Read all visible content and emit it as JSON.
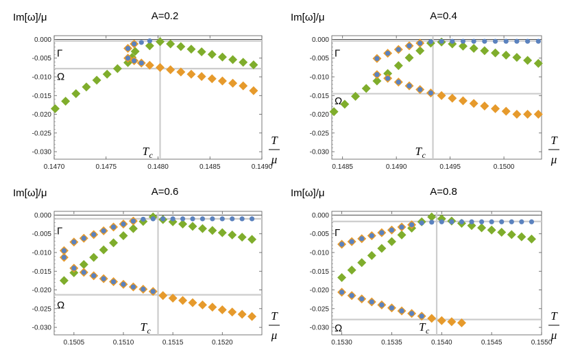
{
  "colors": {
    "green": "#7fad2c",
    "orange": "#e69a2c",
    "blue": "#5b82be",
    "ref": "#cccccc"
  },
  "chart_data": [
    {
      "type": "scatter",
      "title": "A=0.2",
      "ylabel": "Im[ω]/μ",
      "xlabel": "T",
      "xlabel_denominator": "μ",
      "tc_label": "T",
      "tc_sub": "c",
      "xlim": [
        0.147,
        0.149
      ],
      "ylim": [
        -0.032,
        0.001
      ],
      "xticks": [
        0.147,
        0.1475,
        0.148,
        0.1485,
        0.149
      ],
      "yticks": [
        0.0,
        -0.005,
        -0.01,
        -0.015,
        -0.02,
        -0.025,
        -0.03
      ],
      "tc": 0.14802,
      "gamma_line": -0.0004,
      "omega_line": -0.0078,
      "gamma_label": "Γ",
      "omega_label": "Ω",
      "gamma_label_y": -0.0035,
      "omega_label_y": -0.0097,
      "green": [
        [
          0.14701,
          -0.0185
        ],
        [
          0.14711,
          -0.0165
        ],
        [
          0.14721,
          -0.0145
        ],
        [
          0.14731,
          -0.0127
        ],
        [
          0.14741,
          -0.0109
        ],
        [
          0.14751,
          -0.0093
        ],
        [
          0.14761,
          -0.0078
        ],
        [
          0.14771,
          -0.0062
        ],
        [
          0.14775,
          -0.0048
        ],
        [
          0.14778,
          -0.0032
        ],
        [
          0.14792,
          -0.0017
        ],
        [
          0.14802,
          -0.0006
        ],
        [
          0.14812,
          -0.0012
        ],
        [
          0.14822,
          -0.0019
        ],
        [
          0.14832,
          -0.0026
        ],
        [
          0.14842,
          -0.0033
        ],
        [
          0.14852,
          -0.004
        ],
        [
          0.14862,
          -0.0047
        ],
        [
          0.14872,
          -0.0054
        ],
        [
          0.14882,
          -0.0061
        ],
        [
          0.14892,
          -0.0068
        ]
      ],
      "orange": [
        [
          0.14771,
          -0.0024
        ],
        [
          0.14777,
          -0.0012
        ],
        [
          0.14771,
          -0.005
        ],
        [
          0.14777,
          -0.0057
        ],
        [
          0.14784,
          -0.0063
        ],
        [
          0.14792,
          -0.0069
        ],
        [
          0.14802,
          -0.0075
        ],
        [
          0.14812,
          -0.0081
        ],
        [
          0.14822,
          -0.0087
        ],
        [
          0.14832,
          -0.0093
        ],
        [
          0.14842,
          -0.0099
        ],
        [
          0.14852,
          -0.0105
        ],
        [
          0.14862,
          -0.0111
        ],
        [
          0.14872,
          -0.0117
        ],
        [
          0.14882,
          -0.0124
        ],
        [
          0.14892,
          -0.0137
        ]
      ],
      "blue": [
        [
          0.14771,
          -0.0024
        ],
        [
          0.14777,
          -0.0012
        ],
        [
          0.14784,
          -0.0008
        ],
        [
          0.14792,
          -0.0004
        ],
        [
          0.14771,
          -0.005
        ],
        [
          0.14777,
          -0.0057
        ],
        [
          0.14784,
          -0.0063
        ]
      ]
    },
    {
      "type": "scatter",
      "title": "A=0.4",
      "ylabel": "Im[ω]/μ",
      "xlabel": "T",
      "xlabel_denominator": "μ",
      "tc_label": "T",
      "tc_sub": "c",
      "xlim": [
        0.1484,
        0.15035
      ],
      "ylim": [
        -0.032,
        0.001
      ],
      "xticks": [
        0.1485,
        0.149,
        0.1495,
        0.15
      ],
      "yticks": [
        0.0,
        -0.005,
        -0.01,
        -0.015,
        -0.02,
        -0.025,
        -0.03
      ],
      "tc": 0.14934,
      "gamma_line": -0.0004,
      "omega_line": -0.0145,
      "gamma_label": "Γ",
      "omega_label": "Ω",
      "gamma_label_y": -0.0035,
      "omega_label_y": -0.0162,
      "green": [
        [
          0.14842,
          -0.0193
        ],
        [
          0.14852,
          -0.0173
        ],
        [
          0.14862,
          -0.0152
        ],
        [
          0.14872,
          -0.0131
        ],
        [
          0.14882,
          -0.0111
        ],
        [
          0.14892,
          -0.0091
        ],
        [
          0.14902,
          -0.007
        ],
        [
          0.14912,
          -0.0049
        ],
        [
          0.14922,
          -0.003
        ],
        [
          0.14932,
          -0.001
        ],
        [
          0.14942,
          -0.0007
        ],
        [
          0.14952,
          -0.0012
        ],
        [
          0.14962,
          -0.0018
        ],
        [
          0.14972,
          -0.0024
        ],
        [
          0.14982,
          -0.003
        ],
        [
          0.14992,
          -0.0036
        ],
        [
          0.15002,
          -0.0042
        ],
        [
          0.15012,
          -0.0048
        ],
        [
          0.15022,
          -0.0056
        ],
        [
          0.15032,
          -0.0064
        ]
      ],
      "orange": [
        [
          0.14882,
          -0.0051
        ],
        [
          0.14892,
          -0.0037
        ],
        [
          0.14902,
          -0.0027
        ],
        [
          0.14912,
          -0.0017
        ],
        [
          0.14922,
          -0.001
        ],
        [
          0.14882,
          -0.0094
        ],
        [
          0.14892,
          -0.0104
        ],
        [
          0.14902,
          -0.0114
        ],
        [
          0.14912,
          -0.0124
        ],
        [
          0.14922,
          -0.0134
        ],
        [
          0.14932,
          -0.0143
        ],
        [
          0.14942,
          -0.015
        ],
        [
          0.14952,
          -0.0157
        ],
        [
          0.14962,
          -0.0164
        ],
        [
          0.14972,
          -0.0171
        ],
        [
          0.14982,
          -0.0178
        ],
        [
          0.14992,
          -0.0185
        ],
        [
          0.15002,
          -0.0192
        ],
        [
          0.15012,
          -0.02
        ],
        [
          0.15022,
          -0.02
        ],
        [
          0.15032,
          -0.02
        ]
      ],
      "blue": [
        [
          0.14882,
          -0.0051
        ],
        [
          0.14892,
          -0.0037
        ],
        [
          0.14902,
          -0.0027
        ],
        [
          0.14912,
          -0.0017
        ],
        [
          0.14922,
          -0.001
        ],
        [
          0.14932,
          -0.0006
        ],
        [
          0.14942,
          -0.0005
        ],
        [
          0.14952,
          -0.0005
        ],
        [
          0.14962,
          -0.0005
        ],
        [
          0.14972,
          -0.0005
        ],
        [
          0.14982,
          -0.0005
        ],
        [
          0.14992,
          -0.0005
        ],
        [
          0.15002,
          -0.0005
        ],
        [
          0.15012,
          -0.0005
        ],
        [
          0.15022,
          -0.0005
        ],
        [
          0.15032,
          -0.0005
        ],
        [
          0.14882,
          -0.0094
        ],
        [
          0.14892,
          -0.0104
        ],
        [
          0.14902,
          -0.0114
        ],
        [
          0.14912,
          -0.0124
        ],
        [
          0.14922,
          -0.0134
        ],
        [
          0.14932,
          -0.0143
        ]
      ]
    },
    {
      "type": "scatter",
      "title": "A=0.6",
      "ylabel": "Im[ω]/μ",
      "xlabel": "T",
      "xlabel_denominator": "μ",
      "tc_label": "T",
      "tc_sub": "c",
      "xlim": [
        0.1503,
        0.1524
      ],
      "ylim": [
        -0.032,
        0.001
      ],
      "xticks": [
        0.1505,
        0.151,
        0.1515,
        0.152
      ],
      "yticks": [
        0.0,
        -0.005,
        -0.01,
        -0.015,
        -0.02,
        -0.025,
        -0.03
      ],
      "tc": 0.15135,
      "gamma_line": -0.001,
      "omega_line": -0.0213,
      "gamma_label": "Γ",
      "omega_label": "Ω",
      "gamma_label_y": -0.004,
      "omega_label_y": -0.0238,
      "green": [
        [
          0.1504,
          -0.0175
        ],
        [
          0.1505,
          -0.0154
        ],
        [
          0.1506,
          -0.0132
        ],
        [
          0.1507,
          -0.0113
        ],
        [
          0.1508,
          -0.0093
        ],
        [
          0.1509,
          -0.0074
        ],
        [
          0.151,
          -0.0055
        ],
        [
          0.1511,
          -0.0036
        ],
        [
          0.1512,
          -0.0017
        ],
        [
          0.1513,
          -0.0005
        ],
        [
          0.1514,
          -0.0012
        ],
        [
          0.1515,
          -0.0018
        ],
        [
          0.1516,
          -0.0024
        ],
        [
          0.1517,
          -0.003
        ],
        [
          0.1518,
          -0.0036
        ],
        [
          0.1519,
          -0.0041
        ],
        [
          0.152,
          -0.0047
        ],
        [
          0.1521,
          -0.0053
        ],
        [
          0.1522,
          -0.0059
        ],
        [
          0.1523,
          -0.0065
        ]
      ],
      "orange": [
        [
          0.1504,
          -0.0095
        ],
        [
          0.1504,
          -0.0113
        ],
        [
          0.1505,
          -0.0072
        ],
        [
          0.1506,
          -0.0062
        ],
        [
          0.1507,
          -0.0052
        ],
        [
          0.1508,
          -0.0042
        ],
        [
          0.1509,
          -0.0032
        ],
        [
          0.151,
          -0.0024
        ],
        [
          0.1511,
          -0.0016
        ],
        [
          0.1505,
          -0.0142
        ],
        [
          0.1506,
          -0.0153
        ],
        [
          0.1507,
          -0.0162
        ],
        [
          0.1508,
          -0.017
        ],
        [
          0.1509,
          -0.0178
        ],
        [
          0.151,
          -0.0185
        ],
        [
          0.1511,
          -0.0192
        ],
        [
          0.1512,
          -0.0198
        ],
        [
          0.1513,
          -0.0204
        ],
        [
          0.1514,
          -0.0215
        ],
        [
          0.1515,
          -0.0222
        ],
        [
          0.1516,
          -0.0228
        ],
        [
          0.1517,
          -0.0234
        ],
        [
          0.1518,
          -0.024
        ],
        [
          0.1519,
          -0.0246
        ],
        [
          0.152,
          -0.0253
        ],
        [
          0.1521,
          -0.0259
        ],
        [
          0.1522,
          -0.0265
        ],
        [
          0.1523,
          -0.0271
        ]
      ],
      "blue": [
        [
          0.1504,
          -0.0095
        ],
        [
          0.1504,
          -0.0113
        ],
        [
          0.1505,
          -0.0072
        ],
        [
          0.1506,
          -0.0062
        ],
        [
          0.1507,
          -0.0052
        ],
        [
          0.1508,
          -0.0042
        ],
        [
          0.1509,
          -0.0032
        ],
        [
          0.151,
          -0.0024
        ],
        [
          0.1511,
          -0.0016
        ],
        [
          0.1512,
          -0.0011
        ],
        [
          0.1513,
          -0.001
        ],
        [
          0.1514,
          -0.001
        ],
        [
          0.1515,
          -0.001
        ],
        [
          0.1516,
          -0.001
        ],
        [
          0.1517,
          -0.001
        ],
        [
          0.1518,
          -0.001
        ],
        [
          0.1519,
          -0.001
        ],
        [
          0.152,
          -0.001
        ],
        [
          0.1521,
          -0.001
        ],
        [
          0.1522,
          -0.001
        ],
        [
          0.1523,
          -0.001
        ],
        [
          0.1505,
          -0.0142
        ],
        [
          0.1506,
          -0.0153
        ],
        [
          0.1507,
          -0.0162
        ],
        [
          0.1508,
          -0.017
        ],
        [
          0.1509,
          -0.0178
        ],
        [
          0.151,
          -0.0185
        ],
        [
          0.1511,
          -0.0192
        ],
        [
          0.1512,
          -0.0198
        ],
        [
          0.1513,
          -0.0204
        ]
      ]
    },
    {
      "type": "scatter",
      "title": "A=0.8",
      "ylabel": "Im[ω]/μ",
      "xlabel": "T",
      "xlabel_denominator": "μ",
      "tc_label": "T",
      "tc_sub": "c",
      "xlim": [
        0.1529,
        0.155
      ],
      "ylim": [
        -0.032,
        0.001
      ],
      "xticks": [
        0.153,
        0.1535,
        0.154,
        0.1545,
        0.155
      ],
      "xtick_labels": [
        "0.1530",
        "0.1535",
        "0.1540",
        "0.1545",
        "0.1550"
      ],
      "yticks": [
        0.0,
        -0.005,
        -0.01,
        -0.015,
        -0.02,
        -0.025,
        -0.03
      ],
      "tc": 0.15395,
      "gamma_line": -0.0017,
      "omega_line": -0.0279,
      "gamma_label": "Γ",
      "omega_label": "Ω",
      "gamma_label_y": -0.0045,
      "omega_label_y": -0.03,
      "green": [
        [
          0.153,
          -0.0167
        ],
        [
          0.1531,
          -0.0147
        ],
        [
          0.1532,
          -0.0127
        ],
        [
          0.1533,
          -0.0108
        ],
        [
          0.1534,
          -0.0089
        ],
        [
          0.1535,
          -0.0071
        ],
        [
          0.1536,
          -0.0053
        ],
        [
          0.1537,
          -0.0035
        ],
        [
          0.1538,
          -0.0018
        ],
        [
          0.1539,
          -0.0005
        ],
        [
          0.154,
          -0.001
        ],
        [
          0.1541,
          -0.0016
        ],
        [
          0.1542,
          -0.0022
        ],
        [
          0.1543,
          -0.0028
        ],
        [
          0.1544,
          -0.0034
        ],
        [
          0.1545,
          -0.004
        ],
        [
          0.1546,
          -0.0046
        ],
        [
          0.1547,
          -0.0052
        ],
        [
          0.1548,
          -0.0058
        ],
        [
          0.1549,
          -0.0064
        ]
      ],
      "orange": [
        [
          0.153,
          -0.0078
        ],
        [
          0.1531,
          -0.0071
        ],
        [
          0.1532,
          -0.0063
        ],
        [
          0.1533,
          -0.0055
        ],
        [
          0.1534,
          -0.0047
        ],
        [
          0.1535,
          -0.004
        ],
        [
          0.1536,
          -0.0032
        ],
        [
          0.1537,
          -0.0026
        ],
        [
          0.153,
          -0.0206
        ],
        [
          0.1531,
          -0.0215
        ],
        [
          0.1532,
          -0.0224
        ],
        [
          0.1533,
          -0.0232
        ],
        [
          0.1534,
          -0.024
        ],
        [
          0.1535,
          -0.0248
        ],
        [
          0.1536,
          -0.0256
        ],
        [
          0.1537,
          -0.0263
        ],
        [
          0.1538,
          -0.027
        ],
        [
          0.1539,
          -0.0276
        ],
        [
          0.154,
          -0.0282
        ],
        [
          0.1541,
          -0.0285
        ],
        [
          0.1542,
          -0.0288
        ]
      ],
      "blue": [
        [
          0.153,
          -0.0078
        ],
        [
          0.1531,
          -0.0071
        ],
        [
          0.1532,
          -0.0063
        ],
        [
          0.1533,
          -0.0055
        ],
        [
          0.1534,
          -0.0047
        ],
        [
          0.1535,
          -0.004
        ],
        [
          0.1536,
          -0.0032
        ],
        [
          0.1537,
          -0.0026
        ],
        [
          0.1538,
          -0.0021
        ],
        [
          0.1539,
          -0.0019
        ],
        [
          0.154,
          -0.0018
        ],
        [
          0.1541,
          -0.0018
        ],
        [
          0.1542,
          -0.0018
        ],
        [
          0.1543,
          -0.0018
        ],
        [
          0.1544,
          -0.0018
        ],
        [
          0.1545,
          -0.0018
        ],
        [
          0.1546,
          -0.0018
        ],
        [
          0.1547,
          -0.0018
        ],
        [
          0.1548,
          -0.0018
        ],
        [
          0.1549,
          -0.0018
        ],
        [
          0.153,
          -0.0206
        ],
        [
          0.1531,
          -0.0215
        ],
        [
          0.1532,
          -0.0224
        ],
        [
          0.1533,
          -0.0232
        ],
        [
          0.1534,
          -0.024
        ],
        [
          0.1535,
          -0.0248
        ],
        [
          0.1536,
          -0.0256
        ],
        [
          0.1537,
          -0.0263
        ],
        [
          0.1538,
          -0.027
        ]
      ]
    }
  ]
}
